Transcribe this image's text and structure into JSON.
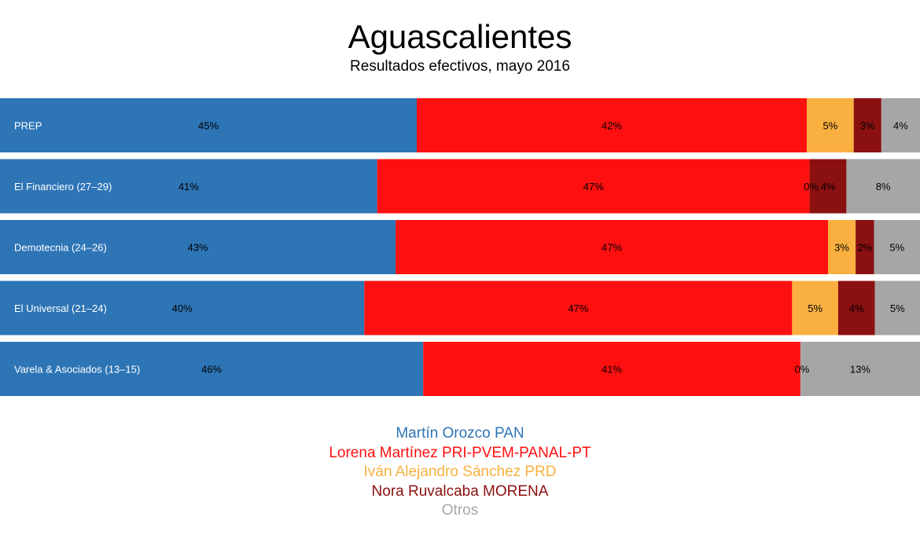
{
  "chart_data": {
    "type": "bar",
    "stacked": true,
    "orientation": "horizontal",
    "title": "Aguascalientes",
    "subtitle": "Resultados efectivos, mayo 2016",
    "xlim": [
      0,
      100
    ],
    "grid": false,
    "legend_position": "bottom",
    "categories": [
      "PREP",
      "El Financiero (27–29)",
      "Demotecnia (24–26)",
      "El Universal (21–24)",
      "Varela & Asociados (13–15)"
    ],
    "series": [
      {
        "name": "Martín Orozco PAN",
        "color": "#2E75B6",
        "values": [
          45.3,
          41,
          43,
          39.6,
          46
        ],
        "labels": [
          "45%",
          "41%",
          "43%",
          "40%",
          "46%"
        ]
      },
      {
        "name": "Lorena Martínez PRI-PVEM-PANAL-PT",
        "color": "#FF1010",
        "values": [
          42.4,
          47,
          47,
          46.5,
          41
        ],
        "labels": [
          "42%",
          "47%",
          "47%",
          "47%",
          "41%"
        ]
      },
      {
        "name": "Iván Alejandro Sánchez PRD",
        "color": "#F9B040",
        "values": [
          5.1,
          0,
          3,
          5,
          0
        ],
        "labels": [
          "5%",
          "0%",
          "3%",
          "5%",
          "0%"
        ]
      },
      {
        "name": "Nora Ruvalcaba MORENA",
        "color": "#8B1010",
        "values": [
          3,
          4,
          2,
          4,
          0
        ],
        "labels": [
          "3%",
          "4%",
          "2%",
          "4%",
          ""
        ]
      },
      {
        "name": "Otros",
        "color": "#A6A6A6",
        "values": [
          4.2,
          8,
          5,
          4.9,
          13
        ],
        "labels": [
          "4%",
          "8%",
          "5%",
          "5%",
          "13%"
        ]
      }
    ]
  }
}
